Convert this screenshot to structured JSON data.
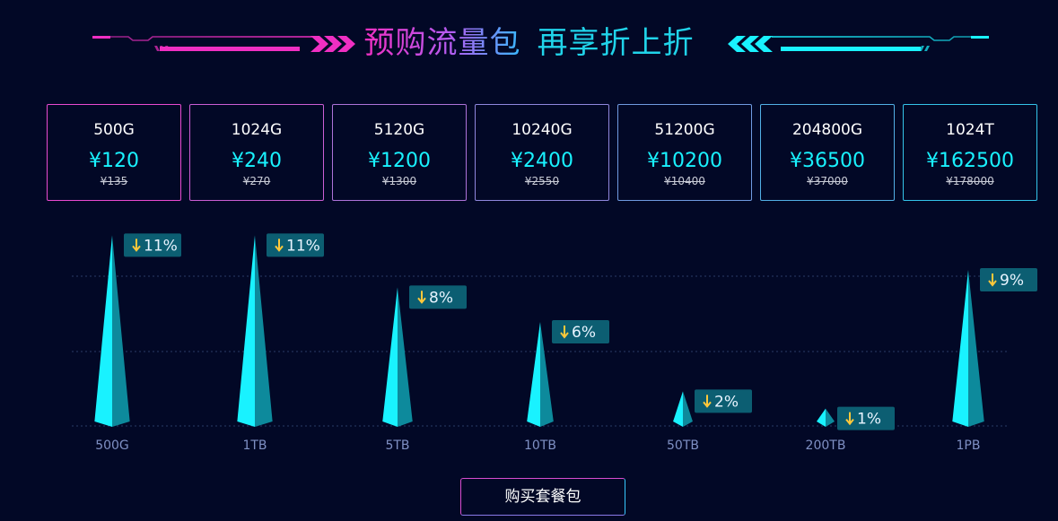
{
  "header": {
    "title_part1": "预购流量包",
    "title_part2": "再享折上折"
  },
  "colors": {
    "background": "#020826",
    "magenta": "#f02fc2",
    "cyan": "#19f2ff",
    "badge_bg": "#0c5e72",
    "arrow": "#ffc83a"
  },
  "packages": [
    {
      "size": "500G",
      "price": "¥120",
      "original": "¥135"
    },
    {
      "size": "1024G",
      "price": "¥240",
      "original": "¥270"
    },
    {
      "size": "5120G",
      "price": "¥1200",
      "original": "¥1300"
    },
    {
      "size": "10240G",
      "price": "¥2400",
      "original": "¥2550"
    },
    {
      "size": "51200G",
      "price": "¥10200",
      "original": "¥10400"
    },
    {
      "size": "204800G",
      "price": "¥36500",
      "original": "¥37000"
    },
    {
      "size": "1024T",
      "price": "¥162500",
      "original": "¥178000"
    }
  ],
  "chart_data": {
    "type": "bar",
    "categories": [
      "500G",
      "1TB",
      "5TB",
      "10TB",
      "50TB",
      "200TB",
      "1PB"
    ],
    "values": [
      11,
      11,
      8,
      6,
      2,
      1,
      9
    ],
    "labels": [
      "11%",
      "11%",
      "8%",
      "6%",
      "2%",
      "1%",
      "9%"
    ],
    "ylim": [
      0,
      12
    ],
    "grid": true,
    "legend": "none"
  },
  "buy_button": {
    "label": "购买套餐包"
  }
}
